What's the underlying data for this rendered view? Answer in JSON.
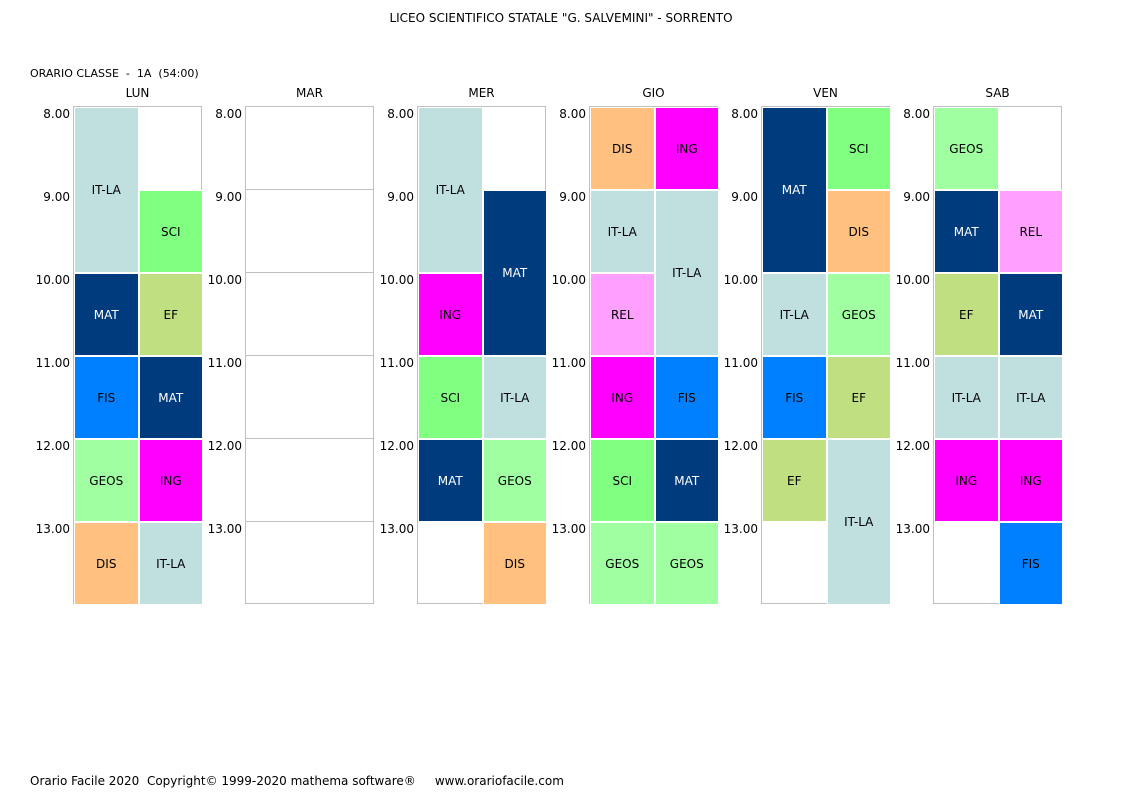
{
  "header": {
    "title": "LICEO SCIENTIFICO STATALE \"G. SALVEMINI\" - SORRENTO",
    "class_label": "ORARIO CLASSE  -  1A  (54:00)"
  },
  "footer": {
    "text": "Orario Facile 2020  Copyright© 1999-2020 mathema software®     www.orariofacile.com"
  },
  "hours": [
    "8.00",
    "9.00",
    "10.00",
    "11.00",
    "12.00",
    "13.00"
  ],
  "colors": {
    "IT-LA": "#c0dfdf",
    "SCI": "#80ff80",
    "MAT": "#003b7e",
    "EF": "#c0df80",
    "FIS": "#0080ff",
    "GEOS": "#a0ffa0",
    "ING": "#ff00ff",
    "DIS": "#ffc080",
    "REL": "#ffa0ff"
  },
  "text_colors": {
    "MAT": "#ffffff"
  },
  "days": [
    {
      "name": "LUN",
      "lessons": [
        {
          "subject": "IT-LA",
          "col": 0,
          "start": 0,
          "span": 2
        },
        {
          "subject": "SCI",
          "col": 1,
          "start": 1,
          "span": 1
        },
        {
          "subject": "MAT",
          "col": 0,
          "start": 2,
          "span": 1
        },
        {
          "subject": "EF",
          "col": 1,
          "start": 2,
          "span": 1
        },
        {
          "subject": "FIS",
          "col": 0,
          "start": 3,
          "span": 1
        },
        {
          "subject": "MAT",
          "col": 1,
          "start": 3,
          "span": 1
        },
        {
          "subject": "GEOS",
          "col": 0,
          "start": 4,
          "span": 1
        },
        {
          "subject": "ING",
          "col": 1,
          "start": 4,
          "span": 1
        },
        {
          "subject": "DIS",
          "col": 0,
          "start": 5,
          "span": 1
        },
        {
          "subject": "IT-LA",
          "col": 1,
          "start": 5,
          "span": 1
        }
      ]
    },
    {
      "name": "MAR",
      "lessons": []
    },
    {
      "name": "MER",
      "lessons": [
        {
          "subject": "IT-LA",
          "col": 0,
          "start": 0,
          "span": 2
        },
        {
          "subject": "MAT",
          "col": 1,
          "start": 1,
          "span": 2
        },
        {
          "subject": "ING",
          "col": 0,
          "start": 2,
          "span": 1
        },
        {
          "subject": "SCI",
          "col": 0,
          "start": 3,
          "span": 1
        },
        {
          "subject": "IT-LA",
          "col": 1,
          "start": 3,
          "span": 1
        },
        {
          "subject": "MAT",
          "col": 0,
          "start": 4,
          "span": 1
        },
        {
          "subject": "GEOS",
          "col": 1,
          "start": 4,
          "span": 1
        },
        {
          "subject": "DIS",
          "col": 1,
          "start": 5,
          "span": 1
        }
      ]
    },
    {
      "name": "GIO",
      "lessons": [
        {
          "subject": "DIS",
          "col": 0,
          "start": 0,
          "span": 1
        },
        {
          "subject": "ING",
          "col": 1,
          "start": 0,
          "span": 1
        },
        {
          "subject": "IT-LA",
          "col": 0,
          "start": 1,
          "span": 1
        },
        {
          "subject": "IT-LA",
          "col": 1,
          "start": 1,
          "span": 2
        },
        {
          "subject": "REL",
          "col": 0,
          "start": 2,
          "span": 1
        },
        {
          "subject": "ING",
          "col": 0,
          "start": 3,
          "span": 1
        },
        {
          "subject": "FIS",
          "col": 1,
          "start": 3,
          "span": 1
        },
        {
          "subject": "SCI",
          "col": 0,
          "start": 4,
          "span": 1
        },
        {
          "subject": "MAT",
          "col": 1,
          "start": 4,
          "span": 1
        },
        {
          "subject": "GEOS",
          "col": 0,
          "start": 5,
          "span": 1
        },
        {
          "subject": "GEOS",
          "col": 1,
          "start": 5,
          "span": 1
        }
      ]
    },
    {
      "name": "VEN",
      "lessons": [
        {
          "subject": "MAT",
          "col": 0,
          "start": 0,
          "span": 2
        },
        {
          "subject": "SCI",
          "col": 1,
          "start": 0,
          "span": 1
        },
        {
          "subject": "DIS",
          "col": 1,
          "start": 1,
          "span": 1
        },
        {
          "subject": "IT-LA",
          "col": 0,
          "start": 2,
          "span": 1
        },
        {
          "subject": "GEOS",
          "col": 1,
          "start": 2,
          "span": 1
        },
        {
          "subject": "FIS",
          "col": 0,
          "start": 3,
          "span": 1
        },
        {
          "subject": "EF",
          "col": 1,
          "start": 3,
          "span": 1
        },
        {
          "subject": "EF",
          "col": 0,
          "start": 4,
          "span": 1
        },
        {
          "subject": "IT-LA",
          "col": 1,
          "start": 4,
          "span": 2
        }
      ]
    },
    {
      "name": "SAB",
      "lessons": [
        {
          "subject": "GEOS",
          "col": 0,
          "start": 0,
          "span": 1
        },
        {
          "subject": "MAT",
          "col": 0,
          "start": 1,
          "span": 1
        },
        {
          "subject": "REL",
          "col": 1,
          "start": 1,
          "span": 1
        },
        {
          "subject": "EF",
          "col": 0,
          "start": 2,
          "span": 1
        },
        {
          "subject": "MAT",
          "col": 1,
          "start": 2,
          "span": 1
        },
        {
          "subject": "IT-LA",
          "col": 0,
          "start": 3,
          "span": 1
        },
        {
          "subject": "IT-LA",
          "col": 1,
          "start": 3,
          "span": 1
        },
        {
          "subject": "ING",
          "col": 0,
          "start": 4,
          "span": 1
        },
        {
          "subject": "ING",
          "col": 1,
          "start": 4,
          "span": 1
        },
        {
          "subject": "FIS",
          "col": 1,
          "start": 5,
          "span": 1
        }
      ]
    }
  ]
}
